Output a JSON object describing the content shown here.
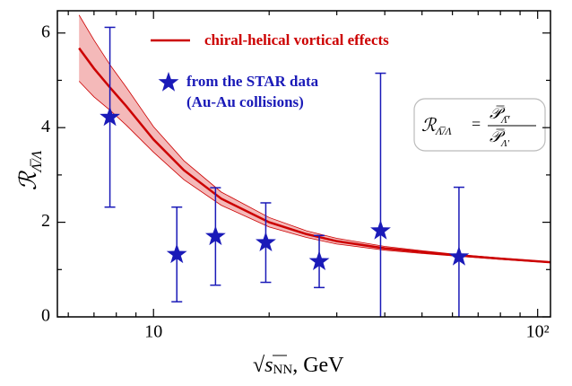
{
  "chart_data": {
    "type": "scatter",
    "xlabel": {
      "root": "√",
      "var": "s",
      "sub": "NN",
      "unit": ", GeV"
    },
    "ylabel": {
      "main": "ℛ",
      "sub": "Λ̅/Λ"
    },
    "annotation": {
      "lhs": "ℛ",
      "lhs_sub": "Λ̅/Λ",
      "eq": "=",
      "num": "𝒫̅",
      "num_sub": "Λ̅′",
      "den": "𝒫̅",
      "den_sub": "Λ′"
    },
    "xscale": "log",
    "xlim": [
      5.62,
      108
    ],
    "ylim": [
      0,
      6.47
    ],
    "xticks": [
      10,
      {
        "value": 100,
        "label": "10²"
      }
    ],
    "xminor_ticks": [
      6,
      7,
      8,
      9,
      20,
      30,
      40,
      50,
      60,
      70,
      80,
      90
    ],
    "yticks": [
      0,
      2,
      4,
      6
    ],
    "yminor_ticks": [
      1,
      3,
      5
    ],
    "series": [
      {
        "name": "from the STAR data",
        "name_2": "(Au-Au collisions)",
        "color": "#1a1ab8",
        "x": [
          7.7,
          11.5,
          14.5,
          19.6,
          27,
          39,
          62.4
        ],
        "values": [
          4.22,
          1.32,
          1.7,
          1.57,
          1.17,
          1.82,
          1.27
        ],
        "errors": [
          1.9,
          1.0,
          1.03,
          0.84,
          0.55,
          3.33,
          1.47
        ]
      }
    ],
    "curve": {
      "type": "line",
      "name": "chiral-helical vortical effects",
      "color": "#cc0000",
      "band_color": "#f4b9b9",
      "x": [
        6.4,
        7,
        7.7,
        8.5,
        10,
        12,
        15,
        20,
        25,
        30,
        40,
        50,
        60,
        80,
        110
      ],
      "values": [
        5.68,
        5.25,
        4.85,
        4.45,
        3.75,
        3.1,
        2.5,
        2.0,
        1.75,
        1.6,
        1.45,
        1.37,
        1.31,
        1.23,
        1.15
      ],
      "upper": [
        6.38,
        5.85,
        5.33,
        4.85,
        4.02,
        3.3,
        2.64,
        2.1,
        1.82,
        1.66,
        1.49,
        1.4,
        1.33,
        1.245,
        1.16
      ],
      "lower": [
        4.98,
        4.65,
        4.37,
        4.05,
        3.48,
        2.9,
        2.36,
        1.9,
        1.68,
        1.54,
        1.41,
        1.34,
        1.29,
        1.215,
        1.14
      ]
    }
  }
}
